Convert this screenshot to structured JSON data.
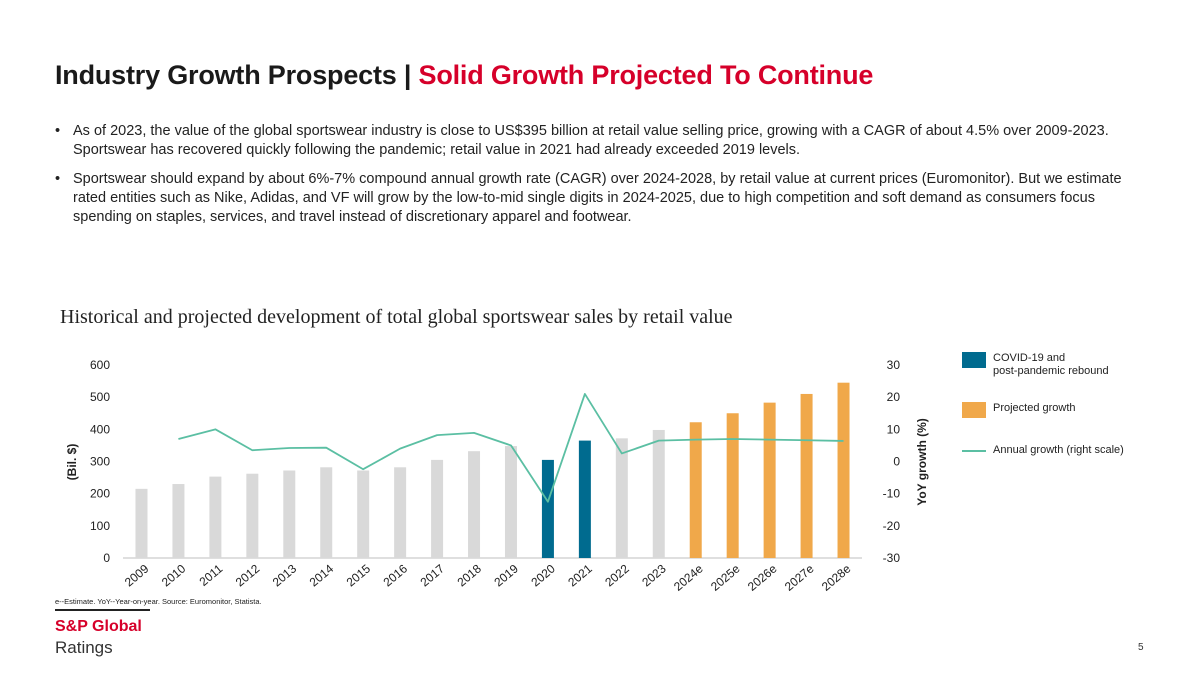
{
  "header": {
    "title_main": "Industry Growth Prospects | ",
    "title_accent": "Solid Growth Projected To Continue"
  },
  "bullets": [
    "As of 2023, the value of the global sportswear industry is close to US$395 billion at retail value selling price, growing with a CAGR of about 4.5% over 2009-2023. Sportswear has recovered quickly following the pandemic; retail value in 2021 had already exceeded 2019 levels.",
    "Sportswear should expand by about 6%-7% compound annual growth rate (CAGR) over 2024-2028, by retail value at current prices (Euromonitor). But we estimate rated entities such as Nike, Adidas, and VF will grow by the low-to-mid single digits in 2024-2025, due to high competition and soft demand as consumers focus spending on staples, services, and travel instead of discretionary apparel and footwear."
  ],
  "chart_data": {
    "type": "bar",
    "title": "Historical and projected development of total global sportswear sales by retail value",
    "categories": [
      "2009",
      "2010",
      "2011",
      "2012",
      "2013",
      "2014",
      "2015",
      "2016",
      "2017",
      "2018",
      "2019",
      "2020",
      "2021",
      "2022",
      "2023",
      "2024e",
      "2025e",
      "2026e",
      "2027e",
      "2028e"
    ],
    "series": [
      {
        "name": "Sales",
        "axis": "left",
        "values": [
          215,
          230,
          253,
          262,
          272,
          282,
          272,
          282,
          305,
          332,
          348,
          305,
          365,
          372,
          398,
          422,
          450,
          483,
          510,
          545
        ],
        "groups": [
          "base",
          "base",
          "base",
          "base",
          "base",
          "base",
          "base",
          "base",
          "base",
          "base",
          "base",
          "covid",
          "covid",
          "base",
          "base",
          "proj",
          "proj",
          "proj",
          "proj",
          "proj"
        ]
      },
      {
        "name": "Annual growth (right scale)",
        "type": "line",
        "axis": "right",
        "values": [
          null,
          7.0,
          10.0,
          3.5,
          4.2,
          4.3,
          -2.4,
          4.0,
          8.2,
          8.9,
          5.0,
          -12.5,
          21.0,
          2.5,
          6.5,
          6.8,
          7.0,
          6.8,
          6.6,
          6.4
        ]
      }
    ],
    "ylabel": "(Bil. $)",
    "ylim": [
      0,
      600
    ],
    "yticks": [
      "0",
      "100",
      "200",
      "300",
      "400",
      "500",
      "600"
    ],
    "y2label": "YoY growth (%)",
    "y2lim": [
      -30,
      30
    ],
    "y2ticks": [
      "-30",
      "-20",
      "-10",
      "0",
      "10",
      "20",
      "30"
    ],
    "legend": [
      {
        "label_line1": "COVID-19 and",
        "label_line2": "post-pandemic rebound",
        "group": "covid"
      },
      {
        "label_line1": "Projected growth",
        "label_line2": "",
        "group": "proj"
      },
      {
        "label_line1": "Annual growth (right scale)",
        "label_line2": "",
        "group": "line"
      }
    ]
  },
  "colors": {
    "base": "#d9d9d9",
    "covid": "#006b8f",
    "proj": "#f0a84a",
    "line": "#5bbfa3",
    "accent": "#d6002a"
  },
  "footer": {
    "footnote": "e--Estimate. YoY--Year-on-year. Source: Euromonitor, Statista.",
    "brand": "S&P Global",
    "brand_sub": "Ratings",
    "page": "5"
  }
}
